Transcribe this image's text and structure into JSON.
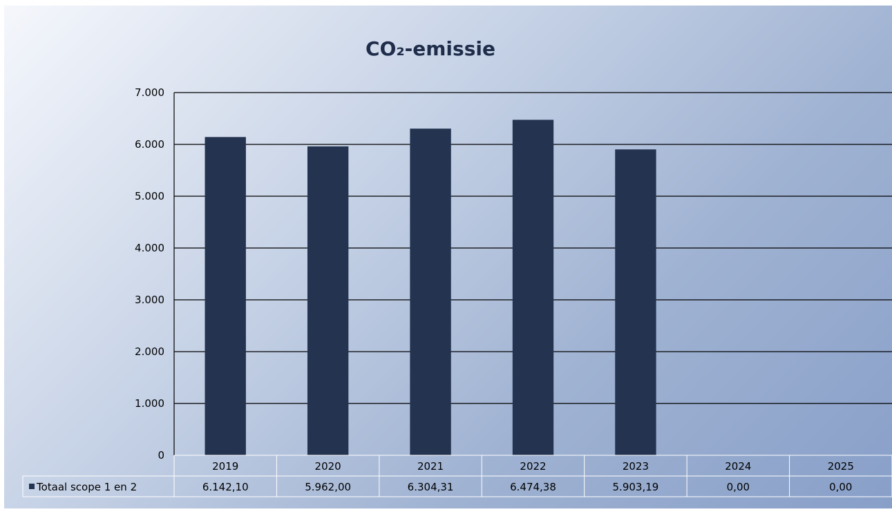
{
  "chart_data": {
    "type": "bar",
    "title": "CO₂-emissie",
    "categories": [
      "2019",
      "2020",
      "2021",
      "2022",
      "2023",
      "2024",
      "2025"
    ],
    "series": [
      {
        "name": "Totaal scope 1 en 2",
        "values": [
          6142.1,
          5962.0,
          6304.31,
          6474.38,
          5903.19,
          0.0,
          0.0
        ],
        "value_labels": [
          "6.142,10",
          "5.962,00",
          "6.304,31",
          "6.474,38",
          "5.903,19",
          "0,00",
          "0,00"
        ],
        "color": "#233350"
      }
    ],
    "ylim": [
      0,
      7000
    ],
    "yticks": [
      0,
      1000,
      2000,
      3000,
      4000,
      5000,
      6000,
      7000
    ],
    "ytick_labels": [
      "0",
      "1.000",
      "2.000",
      "3.000",
      "4.000",
      "5.000",
      "6.000",
      "7.000"
    ],
    "xlabel": "",
    "ylabel": "",
    "grid": true,
    "data_table": true,
    "legend_key_in_table": true
  }
}
